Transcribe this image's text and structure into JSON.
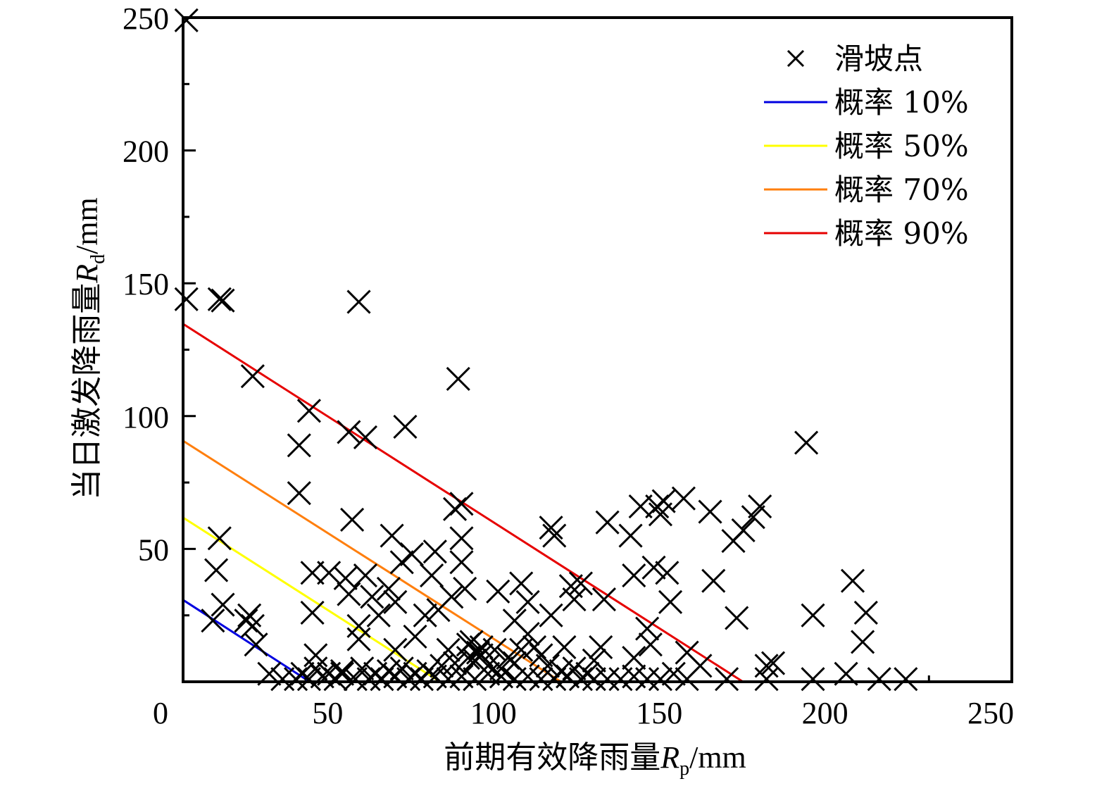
{
  "chart_data": {
    "type": "scatter",
    "title": "",
    "xlabel": {
      "prefix": "前期有效降雨量",
      "var": "R",
      "sub": "p",
      "unit": "/mm"
    },
    "ylabel": {
      "prefix": "当日激发降雨量",
      "var": "R",
      "sub": "d",
      "unit": "/mm"
    },
    "xlim": [
      0,
      250
    ],
    "ylim": [
      0,
      250
    ],
    "xticks": [
      0,
      50,
      100,
      150,
      200,
      250
    ],
    "yticks": [
      50,
      100,
      150,
      200,
      250
    ],
    "x_tick_labels": [
      "0",
      "50",
      "100",
      "150",
      "200",
      "250"
    ],
    "y_tick_labels": [
      "50",
      "100",
      "150",
      "200",
      "250"
    ],
    "origin_label": "0",
    "grid": false,
    "legend_position": "top-right",
    "legend": [
      {
        "label": "滑坡点",
        "kind": "marker",
        "color": "#000000"
      },
      {
        "label": "概率 10%",
        "kind": "line",
        "color": "#0000e0"
      },
      {
        "label": "概率 50%",
        "kind": "line",
        "color": "#ffff00"
      },
      {
        "label": "概率 70%",
        "kind": "line",
        "color": "#ff7f0e"
      },
      {
        "label": "概率 90%",
        "kind": "line",
        "color": "#e60000"
      }
    ],
    "series": [
      {
        "name": "滑坡点",
        "type": "scatter",
        "marker": "x",
        "color": "#000000",
        "points": [
          [
            1,
            249
          ],
          [
            1,
            144
          ],
          [
            11,
            144
          ],
          [
            12,
            143.5
          ],
          [
            53,
            143
          ],
          [
            83,
            114
          ],
          [
            21,
            115
          ],
          [
            38,
            102
          ],
          [
            35,
            89
          ],
          [
            50,
            94
          ],
          [
            55,
            92
          ],
          [
            67,
            96
          ],
          [
            188,
            90
          ],
          [
            35,
            71
          ],
          [
            11,
            54
          ],
          [
            10,
            42
          ],
          [
            9,
            23
          ],
          [
            12,
            29
          ],
          [
            19,
            23
          ],
          [
            20,
            25
          ],
          [
            21,
            21
          ],
          [
            22,
            14
          ],
          [
            39,
            41
          ],
          [
            39,
            26
          ],
          [
            44,
            41
          ],
          [
            40,
            10
          ],
          [
            49,
            39
          ],
          [
            51,
            61
          ],
          [
            50,
            33
          ],
          [
            53,
            21
          ],
          [
            53,
            16
          ],
          [
            55,
            40
          ],
          [
            57,
            32
          ],
          [
            59,
            25
          ],
          [
            62,
            35
          ],
          [
            63,
            55
          ],
          [
            64,
            30
          ],
          [
            64,
            12
          ],
          [
            66,
            45
          ],
          [
            69,
            48
          ],
          [
            70,
            17
          ],
          [
            73,
            25
          ],
          [
            75,
            40
          ],
          [
            76,
            49
          ],
          [
            77,
            27
          ],
          [
            80,
            12
          ],
          [
            81,
            32
          ],
          [
            82,
            65
          ],
          [
            84,
            67
          ],
          [
            84,
            45
          ],
          [
            84,
            54
          ],
          [
            85,
            35
          ],
          [
            86,
            14
          ],
          [
            87,
            15
          ],
          [
            89,
            11
          ],
          [
            90,
            13
          ],
          [
            95,
            34
          ],
          [
            100,
            23
          ],
          [
            102,
            37
          ],
          [
            104,
            30
          ],
          [
            104,
            18
          ],
          [
            106,
            13
          ],
          [
            111,
            58
          ],
          [
            112,
            55
          ],
          [
            111,
            25
          ],
          [
            115,
            13
          ],
          [
            117,
            36
          ],
          [
            118,
            31
          ],
          [
            120,
            37
          ],
          [
            124,
            8
          ],
          [
            126,
            13
          ],
          [
            127,
            31
          ],
          [
            128,
            60
          ],
          [
            135,
            55
          ],
          [
            136,
            40
          ],
          [
            136,
            9
          ],
          [
            138,
            66
          ],
          [
            140,
            20
          ],
          [
            141,
            14
          ],
          [
            142,
            43
          ],
          [
            143,
            66
          ],
          [
            144,
            63
          ],
          [
            145,
            68
          ],
          [
            146,
            41
          ],
          [
            147,
            30
          ],
          [
            151,
            69
          ],
          [
            152,
            11
          ],
          [
            156,
            6
          ],
          [
            159,
            64
          ],
          [
            160,
            38
          ],
          [
            166,
            53
          ],
          [
            167,
            24
          ],
          [
            169,
            57
          ],
          [
            172,
            62
          ],
          [
            174,
            66
          ],
          [
            176,
            6
          ],
          [
            178,
            7
          ],
          [
            190,
            25
          ],
          [
            202,
            38
          ],
          [
            205,
            15
          ],
          [
            206,
            26
          ],
          [
            200,
            3
          ],
          [
            210,
            1
          ],
          [
            218,
            1
          ],
          [
            190,
            1
          ],
          [
            176,
            1
          ],
          [
            164,
            1
          ],
          [
            26,
            3
          ],
          [
            30,
            1
          ],
          [
            34,
            1
          ],
          [
            38,
            1
          ],
          [
            42,
            2
          ],
          [
            46,
            1
          ],
          [
            48,
            3
          ],
          [
            52,
            1
          ],
          [
            56,
            1
          ],
          [
            60,
            1
          ],
          [
            64,
            2
          ],
          [
            68,
            1
          ],
          [
            72,
            1
          ],
          [
            76,
            2
          ],
          [
            80,
            1
          ],
          [
            84,
            2
          ],
          [
            88,
            1
          ],
          [
            92,
            3
          ],
          [
            96,
            2
          ],
          [
            100,
            1
          ],
          [
            104,
            2
          ],
          [
            108,
            1
          ],
          [
            112,
            1
          ],
          [
            116,
            2
          ],
          [
            120,
            1
          ],
          [
            124,
            1
          ],
          [
            128,
            1
          ],
          [
            132,
            1
          ],
          [
            136,
            2
          ],
          [
            140,
            1
          ],
          [
            144,
            1
          ],
          [
            148,
            3
          ],
          [
            152,
            1
          ],
          [
            88,
            8
          ],
          [
            92,
            6
          ],
          [
            96,
            5
          ],
          [
            98,
            9
          ],
          [
            100,
            7
          ],
          [
            90,
            10
          ],
          [
            94,
            12
          ],
          [
            86,
            9
          ],
          [
            82,
            7
          ],
          [
            78,
            6
          ],
          [
            74,
            4
          ],
          [
            70,
            3
          ],
          [
            66,
            5
          ],
          [
            62,
            4
          ],
          [
            58,
            3
          ],
          [
            54,
            5
          ],
          [
            48,
            4
          ],
          [
            44,
            3
          ],
          [
            40,
            5
          ],
          [
            36,
            3
          ],
          [
            110,
            6
          ],
          [
            114,
            4
          ],
          [
            118,
            5
          ],
          [
            122,
            3
          ],
          [
            108,
            10
          ],
          [
            102,
            12
          ]
        ]
      },
      {
        "name": "概率 10%",
        "type": "line",
        "color": "#0000e0",
        "x": [
          0,
          38.2
        ],
        "y": [
          30.8,
          0
        ]
      },
      {
        "name": "概率 50%",
        "type": "line",
        "color": "#ffff00",
        "x": [
          0,
          77.5
        ],
        "y": [
          61.8,
          0
        ]
      },
      {
        "name": "概率 70%",
        "type": "line",
        "color": "#ff7f0e",
        "x": [
          0,
          114
        ],
        "y": [
          90.7,
          0
        ]
      },
      {
        "name": "概率 90%",
        "type": "line",
        "color": "#e60000",
        "x": [
          0,
          168.9
        ],
        "y": [
          134.7,
          0
        ]
      }
    ]
  }
}
